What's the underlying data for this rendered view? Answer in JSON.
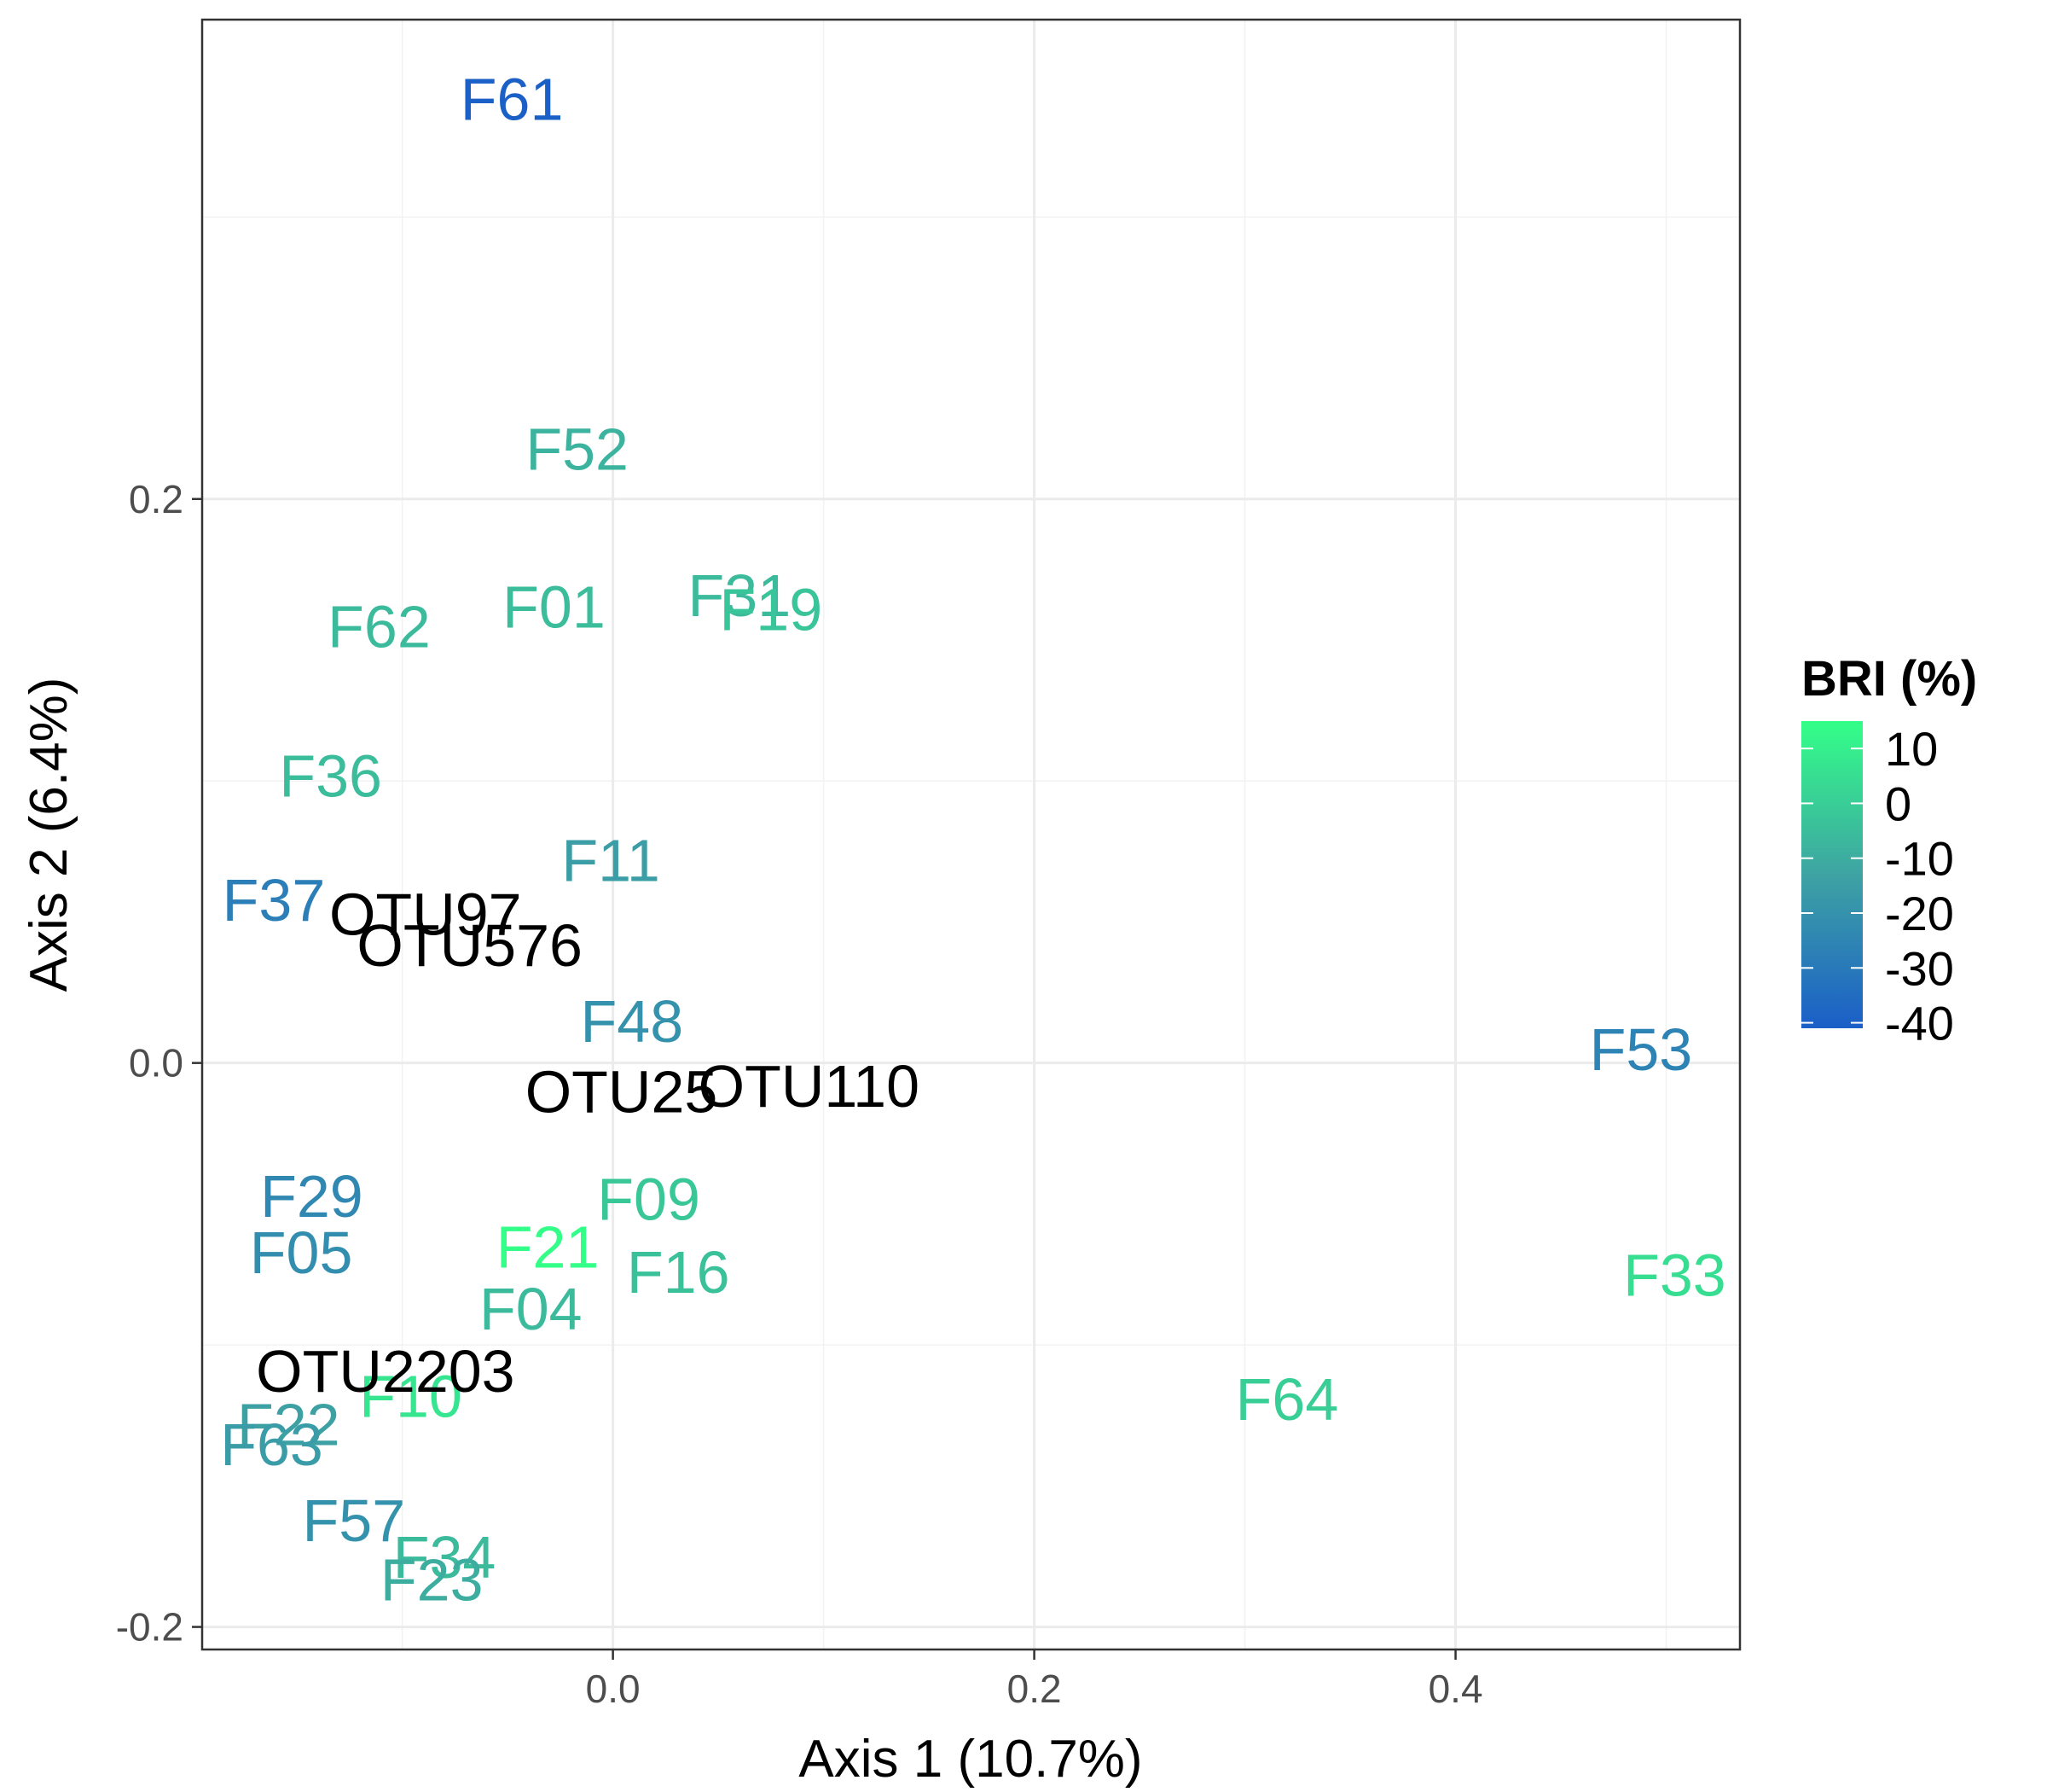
{
  "chart_data": {
    "type": "scatter",
    "title": "",
    "xlabel": "Axis 1 (10.7%)",
    "ylabel": "Axis 2 (6.4%)",
    "xlim": [
      -0.195,
      0.535
    ],
    "ylim": [
      -0.208,
      0.37
    ],
    "x_ticks": [
      0.0,
      0.2,
      0.4
    ],
    "x_tick_labels": [
      "0.0",
      "0.2",
      "0.4"
    ],
    "y_ticks": [
      -0.2,
      0.0,
      0.2
    ],
    "y_tick_labels": [
      "-0.2",
      "0.0",
      "0.2"
    ],
    "grid": true,
    "legend": {
      "title": "BRI (%)",
      "placement": "right",
      "min": -41,
      "max": 15,
      "color_low": "#1a5ec8",
      "color_mid": "#3ea3a3",
      "color_high": "#33ff88",
      "ticks": [
        10,
        0,
        -10,
        -20,
        -30,
        -40
      ],
      "tick_labels": [
        "10",
        "0",
        "-10",
        "-20",
        "-30",
        "-40"
      ]
    },
    "points": [
      {
        "label": "F61",
        "x": -0.048,
        "y": 0.342,
        "bri": -40
      },
      {
        "label": "F52",
        "x": -0.017,
        "y": 0.218,
        "bri": -8
      },
      {
        "label": "F01",
        "x": -0.028,
        "y": 0.162,
        "bri": -5
      },
      {
        "label": "F31",
        "x": 0.06,
        "y": 0.166,
        "bri": -6
      },
      {
        "label": "F19",
        "x": 0.075,
        "y": 0.161,
        "bri": -3
      },
      {
        "label": "F62",
        "x": -0.111,
        "y": 0.155,
        "bri": -6
      },
      {
        "label": "F36",
        "x": -0.134,
        "y": 0.102,
        "bri": -5
      },
      {
        "label": "F11",
        "x": -0.001,
        "y": 0.072,
        "bri": -15
      },
      {
        "label": "F37",
        "x": -0.161,
        "y": 0.058,
        "bri": -28
      },
      {
        "label": "F48",
        "x": 0.009,
        "y": 0.015,
        "bri": -20
      },
      {
        "label": "F53",
        "x": 0.488,
        "y": 0.005,
        "bri": -26
      },
      {
        "label": "F29",
        "x": -0.143,
        "y": -0.047,
        "bri": -24
      },
      {
        "label": "F09",
        "x": 0.017,
        "y": -0.048,
        "bri": -2
      },
      {
        "label": "F05",
        "x": -0.148,
        "y": -0.067,
        "bri": -22
      },
      {
        "label": "F21",
        "x": -0.031,
        "y": -0.065,
        "bri": 15
      },
      {
        "label": "F16",
        "x": 0.031,
        "y": -0.074,
        "bri": -4
      },
      {
        "label": "F33",
        "x": 0.504,
        "y": -0.075,
        "bri": 5
      },
      {
        "label": "F04",
        "x": -0.039,
        "y": -0.087,
        "bri": -6
      },
      {
        "label": "F10",
        "x": -0.096,
        "y": -0.118,
        "bri": 7
      },
      {
        "label": "F64",
        "x": 0.32,
        "y": -0.119,
        "bri": 0
      },
      {
        "label": "F22",
        "x": -0.154,
        "y": -0.128,
        "bri": -14
      },
      {
        "label": "F63",
        "x": -0.162,
        "y": -0.135,
        "bri": -16
      },
      {
        "label": "F57",
        "x": -0.123,
        "y": -0.162,
        "bri": -20
      },
      {
        "label": "F34",
        "x": -0.08,
        "y": -0.175,
        "bri": -6
      },
      {
        "label": "F23",
        "x": -0.086,
        "y": -0.183,
        "bri": -10
      }
    ],
    "otus": [
      {
        "label": "OTU97",
        "x": -0.089,
        "y": 0.053
      },
      {
        "label": "OTU576",
        "x": -0.068,
        "y": 0.042
      },
      {
        "label": "OTU25",
        "x": 0.004,
        "y": -0.01
      },
      {
        "label": "OTU110",
        "x": 0.093,
        "y": -0.008
      },
      {
        "label": "OTU2203",
        "x": -0.108,
        "y": -0.109
      }
    ]
  }
}
